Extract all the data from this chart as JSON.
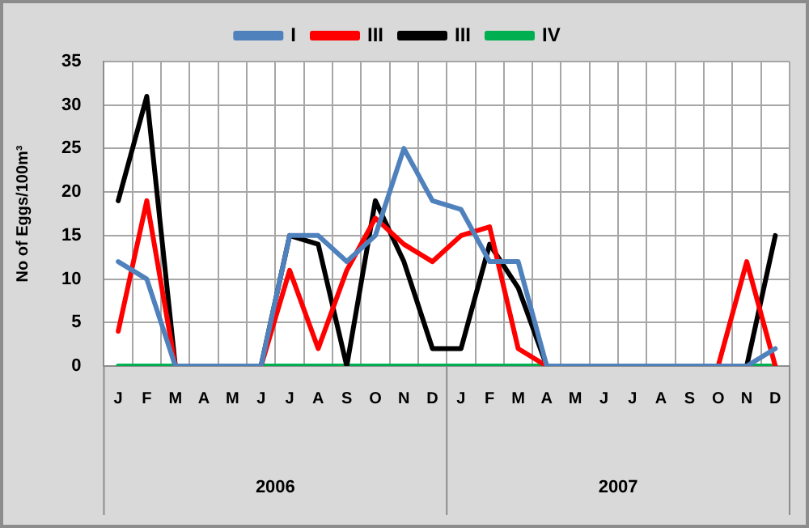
{
  "chart_data": {
    "type": "line",
    "ylabel": "No of Eggs/100m³",
    "categories": [
      "J",
      "F",
      "M",
      "A",
      "M",
      "J",
      "J",
      "A",
      "S",
      "O",
      "N",
      "D",
      "J",
      "F",
      "M",
      "A",
      "M",
      "J",
      "J",
      "A",
      "S",
      "O",
      "N",
      "D"
    ],
    "series": [
      {
        "name": "I",
        "color": "#4f81bd",
        "values": [
          12,
          10,
          0,
          0,
          0,
          0,
          15,
          15,
          12,
          15,
          25,
          19,
          18,
          12,
          12,
          0,
          0,
          0,
          0,
          0,
          0,
          0,
          0,
          2
        ]
      },
      {
        "name": "III",
        "color": "#ff0000",
        "values": [
          4,
          19,
          0,
          0,
          0,
          0,
          11,
          2,
          11,
          17,
          14,
          12,
          15,
          16,
          2,
          0,
          0,
          0,
          0,
          0,
          0,
          0,
          12,
          0
        ]
      },
      {
        "name": "III",
        "color": "#000000",
        "values": [
          19,
          31,
          0,
          0,
          0,
          0,
          15,
          14,
          0,
          19,
          12,
          2,
          2,
          14,
          9,
          0,
          0,
          0,
          0,
          0,
          0,
          0,
          0,
          15
        ]
      },
      {
        "name": "IV",
        "color": "#00b050",
        "values": [
          0,
          0,
          0,
          0,
          0,
          0,
          0,
          0,
          0,
          0,
          0,
          0,
          0,
          0,
          0,
          0,
          0,
          0,
          0,
          0,
          0,
          0,
          0,
          0
        ]
      }
    ],
    "annotations": [
      "2006",
      "2007"
    ],
    "ylim": [
      0,
      35
    ],
    "yticks": [
      0,
      5,
      10,
      15,
      20,
      25,
      30,
      35
    ],
    "grid": true,
    "legend": "top",
    "marker": "none",
    "line_style": "solid"
  }
}
